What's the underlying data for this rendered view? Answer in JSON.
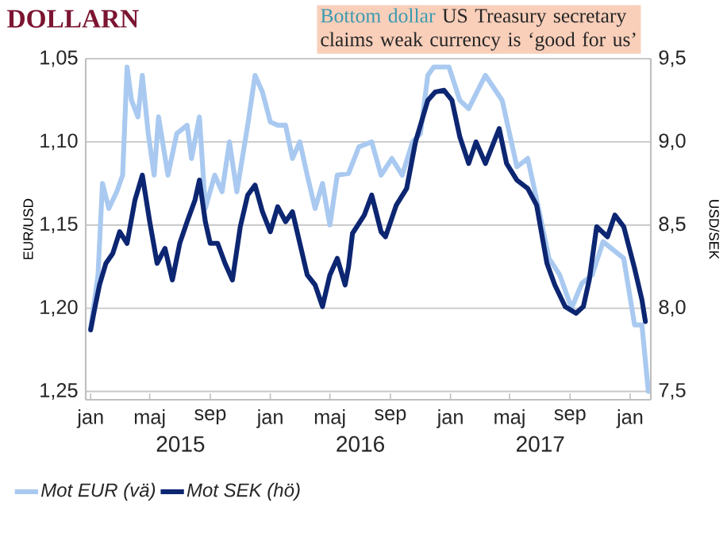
{
  "chart_data": {
    "type": "line",
    "title": "DOLLARN",
    "subtitle": "Bottom dollar",
    "annotations": [
      "US Treasury secretary claims weak currency is ‘good for us’",
      "2015",
      "2016",
      "2017"
    ],
    "ylabel": "EUR/USD",
    "y2label": "USD/SEK",
    "xlim": [
      "2014-12-22",
      "2018-02-12"
    ],
    "xticks": [
      {
        "value": "2015-01-01",
        "label": "jan"
      },
      {
        "value": "2015-05-01",
        "label": "maj"
      },
      {
        "value": "2015-09-01",
        "label": "sep"
      },
      {
        "value": "2016-01-01",
        "label": "jan"
      },
      {
        "value": "2016-05-01",
        "label": "maj"
      },
      {
        "value": "2016-09-01",
        "label": "sep"
      },
      {
        "value": "2017-01-01",
        "label": "jan"
      },
      {
        "value": "2017-05-01",
        "label": "maj"
      },
      {
        "value": "2017-09-01",
        "label": "sep"
      },
      {
        "value": "2018-01-01",
        "label": "jan"
      }
    ],
    "ylim": [
      1.255,
      1.05
    ],
    "yticks": [
      {
        "value": 1.05,
        "label": "1,05"
      },
      {
        "value": 1.1,
        "label": "1,10"
      },
      {
        "value": 1.15,
        "label": "1,15"
      },
      {
        "value": 1.2,
        "label": "1,20"
      },
      {
        "value": 1.25,
        "label": "1,25"
      }
    ],
    "y2lim": [
      7.45,
      9.5
    ],
    "y2ticks": [
      {
        "value": 7.5,
        "label": "7,5"
      },
      {
        "value": 8.0,
        "label": "8,0"
      },
      {
        "value": 8.5,
        "label": "8,5"
      },
      {
        "value": 9.0,
        "label": "9,0"
      },
      {
        "value": 9.5,
        "label": "9,5"
      }
    ],
    "grid": "y",
    "legend": "bottom",
    "line_style": "solid",
    "series": [
      {
        "name": "Mot EUR (vä)",
        "color": "#a9c9f0",
        "x": [
          "2015-01-01",
          "2015-01-16",
          "2015-01-25",
          "2015-02-07",
          "2015-02-23",
          "2015-03-07",
          "2015-03-16",
          "2015-03-25",
          "2015-04-07",
          "2015-04-16",
          "2015-04-28",
          "2015-05-10",
          "2015-05-19",
          "2015-06-07",
          "2015-06-25",
          "2015-07-16",
          "2015-07-25",
          "2015-08-10",
          "2015-08-22",
          "2015-09-10",
          "2015-09-25",
          "2015-10-10",
          "2015-10-25",
          "2015-11-16",
          "2015-12-01",
          "2015-12-16",
          "2016-01-01",
          "2016-01-16",
          "2016-02-01",
          "2016-02-15",
          "2016-03-01",
          "2016-03-16",
          "2016-04-01",
          "2016-04-16",
          "2016-05-01",
          "2016-05-16",
          "2016-06-08",
          "2016-06-29",
          "2016-07-25",
          "2016-08-13",
          "2016-09-04",
          "2016-09-25",
          "2016-10-16",
          "2016-11-01",
          "2016-11-16",
          "2016-11-28",
          "2016-12-29",
          "2017-01-20",
          "2017-02-07",
          "2017-03-13",
          "2017-04-16",
          "2017-04-25",
          "2017-05-16",
          "2017-06-07",
          "2017-06-29",
          "2017-07-20",
          "2017-08-11",
          "2017-09-04",
          "2017-09-25",
          "2017-10-16",
          "2017-11-07",
          "2017-11-28",
          "2017-12-19",
          "2018-01-10",
          "2018-01-25",
          "2018-02-07"
        ],
        "values": [
          1.212,
          1.18,
          1.125,
          1.14,
          1.13,
          1.12,
          1.055,
          1.075,
          1.085,
          1.06,
          1.095,
          1.12,
          1.085,
          1.12,
          1.095,
          1.09,
          1.11,
          1.085,
          1.14,
          1.12,
          1.13,
          1.1,
          1.13,
          1.09,
          1.06,
          1.07,
          1.088,
          1.09,
          1.09,
          1.11,
          1.1,
          1.12,
          1.14,
          1.125,
          1.15,
          1.12,
          1.119,
          1.103,
          1.1,
          1.12,
          1.11,
          1.12,
          1.1,
          1.095,
          1.06,
          1.055,
          1.055,
          1.075,
          1.08,
          1.06,
          1.075,
          1.087,
          1.115,
          1.11,
          1.14,
          1.17,
          1.18,
          1.2,
          1.185,
          1.18,
          1.16,
          1.165,
          1.17,
          1.21,
          1.21,
          1.25
        ]
      },
      {
        "name": "Mot SEK (hö)",
        "color": "#0d2672",
        "axis": "y2",
        "x": [
          "2015-01-01",
          "2015-01-10",
          "2015-01-19",
          "2015-02-01",
          "2015-02-15",
          "2015-03-01",
          "2015-03-16",
          "2015-04-01",
          "2015-04-16",
          "2015-05-01",
          "2015-05-16",
          "2015-06-01",
          "2015-06-16",
          "2015-07-01",
          "2015-07-16",
          "2015-08-01",
          "2015-08-10",
          "2015-08-22",
          "2015-09-01",
          "2015-09-16",
          "2015-10-01",
          "2015-10-16",
          "2015-11-01",
          "2015-11-16",
          "2015-12-01",
          "2015-12-16",
          "2016-01-01",
          "2016-01-16",
          "2016-02-01",
          "2016-02-15",
          "2016-03-01",
          "2016-03-16",
          "2016-04-01",
          "2016-04-16",
          "2016-05-01",
          "2016-05-16",
          "2016-06-01",
          "2016-06-08",
          "2016-06-16",
          "2016-07-10",
          "2016-07-25",
          "2016-08-13",
          "2016-08-22",
          "2016-09-13",
          "2016-10-04",
          "2016-10-22",
          "2016-11-16",
          "2016-12-01",
          "2016-12-19",
          "2017-01-04",
          "2017-01-20",
          "2017-02-07",
          "2017-02-22",
          "2017-03-13",
          "2017-04-10",
          "2017-04-25",
          "2017-05-16",
          "2017-06-07",
          "2017-06-25",
          "2017-07-16",
          "2017-08-01",
          "2017-08-22",
          "2017-09-13",
          "2017-09-28",
          "2017-10-10",
          "2017-10-25",
          "2017-11-16",
          "2017-12-01",
          "2017-12-19",
          "2018-01-10",
          "2018-01-25",
          "2018-02-01"
        ],
        "values": [
          7.87,
          8.01,
          8.14,
          8.27,
          8.33,
          8.46,
          8.39,
          8.65,
          8.8,
          8.52,
          8.27,
          8.36,
          8.17,
          8.39,
          8.52,
          8.65,
          8.77,
          8.52,
          8.39,
          8.39,
          8.27,
          8.17,
          8.49,
          8.68,
          8.74,
          8.58,
          8.46,
          8.61,
          8.52,
          8.58,
          8.39,
          8.2,
          8.14,
          8.01,
          8.2,
          8.3,
          8.14,
          8.25,
          8.45,
          8.56,
          8.68,
          8.46,
          8.43,
          8.62,
          8.72,
          9.0,
          9.25,
          9.3,
          9.31,
          9.25,
          9.03,
          8.87,
          9.0,
          8.87,
          9.08,
          8.87,
          8.77,
          8.72,
          8.62,
          8.27,
          8.14,
          8.01,
          7.97,
          8.01,
          8.17,
          8.49,
          8.43,
          8.56,
          8.49,
          8.24,
          8.05,
          7.92
        ]
      }
    ]
  }
}
